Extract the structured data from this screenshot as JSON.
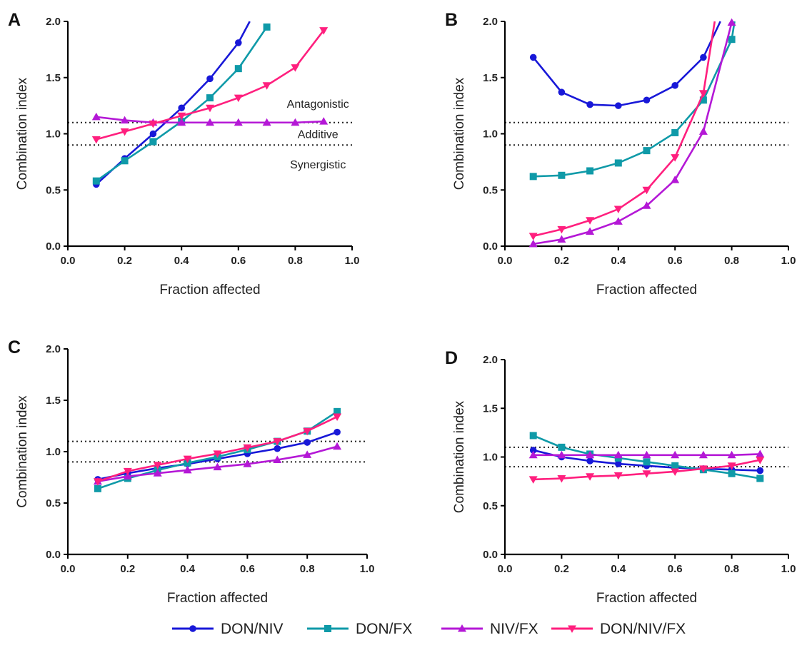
{
  "chart_data": [
    {
      "type": "line",
      "panel": "A",
      "xlabel": "Fraction affected",
      "ylabel": "Combination index",
      "xlim": [
        0.0,
        1.0
      ],
      "ylim": [
        0.0,
        2.0
      ],
      "xticks": [
        "0.0",
        "0.2",
        "0.4",
        "0.6",
        "0.8",
        "1.0"
      ],
      "yticks": [
        "0.0",
        "0.5",
        "1.0",
        "1.5",
        "2.0"
      ],
      "reference_lines": [
        0.9,
        1.1
      ],
      "annotations": [
        {
          "text": "Antagonistic",
          "x": 0.88,
          "y": 1.27
        },
        {
          "text": "Additive",
          "x": 0.88,
          "y": 1.0
        },
        {
          "text": "Synergistic",
          "x": 0.88,
          "y": 0.73
        }
      ],
      "series": [
        {
          "name": "DON/NIV",
          "x": [
            0.1,
            0.2,
            0.3,
            0.4,
            0.5,
            0.6
          ],
          "y": [
            0.55,
            0.78,
            1.0,
            1.23,
            1.49,
            1.81
          ],
          "tail": [
            0.64,
            2.0
          ]
        },
        {
          "name": "DON/FX",
          "x": [
            0.1,
            0.2,
            0.3,
            0.4,
            0.5,
            0.6,
            0.7
          ],
          "y": [
            0.58,
            0.76,
            0.93,
            1.11,
            1.32,
            1.58,
            1.95
          ],
          "tail": null
        },
        {
          "name": "NIV/FX",
          "x": [
            0.1,
            0.2,
            0.3,
            0.4,
            0.5,
            0.6,
            0.7,
            0.8,
            0.9
          ],
          "y": [
            1.15,
            1.12,
            1.1,
            1.1,
            1.1,
            1.1,
            1.1,
            1.1,
            1.11
          ],
          "tail": null
        },
        {
          "name": "DON/NIV/FX",
          "x": [
            0.1,
            0.2,
            0.3,
            0.4,
            0.5,
            0.6,
            0.7,
            0.8,
            0.9
          ],
          "y": [
            0.95,
            1.02,
            1.09,
            1.16,
            1.23,
            1.32,
            1.43,
            1.59,
            1.92
          ],
          "tail": null
        }
      ]
    },
    {
      "type": "line",
      "panel": "B",
      "xlabel": "Fraction affected",
      "ylabel": "Combination index",
      "xlim": [
        0.0,
        1.0
      ],
      "ylim": [
        0.0,
        2.0
      ],
      "xticks": [
        "0.0",
        "0.2",
        "0.4",
        "0.6",
        "0.8",
        "1.0"
      ],
      "yticks": [
        "0.0",
        "0.5",
        "1.0",
        "1.5",
        "2.0"
      ],
      "reference_lines": [
        0.9,
        1.1
      ],
      "annotations": [],
      "series": [
        {
          "name": "DON/NIV",
          "x": [
            0.1,
            0.2,
            0.3,
            0.4,
            0.5,
            0.6,
            0.7
          ],
          "y": [
            1.68,
            1.37,
            1.26,
            1.25,
            1.3,
            1.43,
            1.68
          ],
          "tail": [
            0.76,
            2.0
          ]
        },
        {
          "name": "DON/FX",
          "x": [
            0.1,
            0.2,
            0.3,
            0.4,
            0.5,
            0.6,
            0.7,
            0.8
          ],
          "y": [
            0.62,
            0.63,
            0.67,
            0.74,
            0.85,
            1.01,
            1.3,
            1.84
          ],
          "tail": [
            0.81,
            2.0
          ]
        },
        {
          "name": "NIV/FX",
          "x": [
            0.1,
            0.2,
            0.3,
            0.4,
            0.5,
            0.6,
            0.7,
            0.8
          ],
          "y": [
            0.02,
            0.06,
            0.13,
            0.22,
            0.36,
            0.59,
            1.02,
            1.99
          ],
          "tail": null
        },
        {
          "name": "DON/NIV/FX",
          "x": [
            0.1,
            0.2,
            0.3,
            0.4,
            0.5,
            0.6,
            0.7
          ],
          "y": [
            0.09,
            0.15,
            0.23,
            0.33,
            0.5,
            0.79,
            1.36
          ],
          "tail": [
            0.74,
            2.0
          ]
        }
      ]
    },
    {
      "type": "line",
      "panel": "C",
      "xlabel": "Fraction affected",
      "ylabel": "Combination index",
      "xlim": [
        0.0,
        1.0
      ],
      "ylim": [
        0.0,
        2.0
      ],
      "xticks": [
        "0.0",
        "0.2",
        "0.4",
        "0.6",
        "0.8",
        "1.0"
      ],
      "yticks": [
        "0.0",
        "0.5",
        "1.0",
        "1.5",
        "2.0"
      ],
      "reference_lines": [
        0.9,
        1.1
      ],
      "annotations": [],
      "series": [
        {
          "name": "DON/NIV",
          "x": [
            0.1,
            0.2,
            0.3,
            0.4,
            0.5,
            0.6,
            0.7,
            0.8,
            0.9
          ],
          "y": [
            0.73,
            0.79,
            0.84,
            0.88,
            0.93,
            0.98,
            1.03,
            1.09,
            1.19
          ],
          "tail": null
        },
        {
          "name": "DON/FX",
          "x": [
            0.1,
            0.2,
            0.3,
            0.4,
            0.5,
            0.6,
            0.7,
            0.8,
            0.9
          ],
          "y": [
            0.64,
            0.74,
            0.82,
            0.89,
            0.95,
            1.02,
            1.1,
            1.2,
            1.39
          ],
          "tail": null
        },
        {
          "name": "NIV/FX",
          "x": [
            0.1,
            0.2,
            0.3,
            0.4,
            0.5,
            0.6,
            0.7,
            0.8,
            0.9
          ],
          "y": [
            0.71,
            0.76,
            0.79,
            0.82,
            0.85,
            0.88,
            0.92,
            0.97,
            1.05
          ],
          "tail": null
        },
        {
          "name": "DON/NIV/FX",
          "x": [
            0.1,
            0.2,
            0.3,
            0.4,
            0.5,
            0.6,
            0.7,
            0.8,
            0.9
          ],
          "y": [
            0.71,
            0.81,
            0.87,
            0.93,
            0.98,
            1.04,
            1.1,
            1.2,
            1.34
          ],
          "tail": null
        }
      ]
    },
    {
      "type": "line",
      "panel": "D",
      "xlabel": "Fraction affected",
      "ylabel": "Combination index",
      "xlim": [
        0.0,
        1.0
      ],
      "ylim": [
        0.0,
        2.0
      ],
      "xticks": [
        "0.0",
        "0.2",
        "0.4",
        "0.6",
        "0.8",
        "1.0"
      ],
      "yticks": [
        "0.0",
        "0.5",
        "1.0",
        "1.5",
        "2.0"
      ],
      "reference_lines": [
        0.9,
        1.1
      ],
      "annotations": [],
      "series": [
        {
          "name": "DON/NIV",
          "x": [
            0.1,
            0.2,
            0.3,
            0.4,
            0.5,
            0.6,
            0.7,
            0.8,
            0.9
          ],
          "y": [
            1.07,
            1.0,
            0.96,
            0.93,
            0.91,
            0.89,
            0.88,
            0.87,
            0.86
          ],
          "tail": null
        },
        {
          "name": "DON/FX",
          "x": [
            0.1,
            0.2,
            0.3,
            0.4,
            0.5,
            0.6,
            0.7,
            0.8,
            0.9
          ],
          "y": [
            1.22,
            1.1,
            1.03,
            0.99,
            0.95,
            0.91,
            0.87,
            0.83,
            0.78
          ],
          "tail": null
        },
        {
          "name": "NIV/FX",
          "x": [
            0.1,
            0.2,
            0.3,
            0.4,
            0.5,
            0.6,
            0.7,
            0.8,
            0.9
          ],
          "y": [
            1.02,
            1.02,
            1.02,
            1.02,
            1.02,
            1.02,
            1.02,
            1.02,
            1.03
          ],
          "tail": null
        },
        {
          "name": "DON/NIV/FX",
          "x": [
            0.1,
            0.2,
            0.3,
            0.4,
            0.5,
            0.6,
            0.7,
            0.8,
            0.9
          ],
          "y": [
            0.77,
            0.78,
            0.8,
            0.81,
            0.83,
            0.85,
            0.88,
            0.91,
            0.97
          ],
          "tail": null
        }
      ]
    }
  ],
  "series_style": {
    "DON/NIV": {
      "color": "#1818d8",
      "marker": "circle"
    },
    "DON/FX": {
      "color": "#0f9aa8",
      "marker": "square"
    },
    "NIV/FX": {
      "color": "#b418d6",
      "marker": "triangle-up"
    },
    "DON/NIV/FX": {
      "color": "#ff1f7e",
      "marker": "triangle-down"
    }
  },
  "legend": {
    "placement": "bottom-center",
    "items": [
      "DON/NIV",
      "DON/FX",
      "NIV/FX",
      "DON/NIV/FX"
    ]
  }
}
